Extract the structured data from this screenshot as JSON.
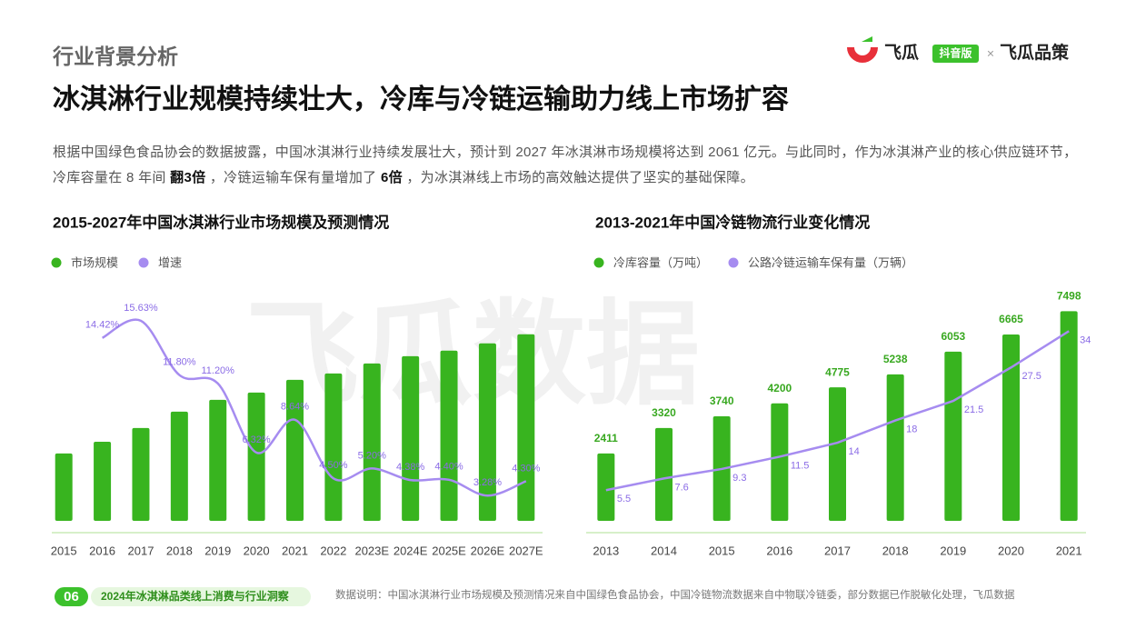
{
  "header": {
    "section": "行业背景分析",
    "title": "冰淇淋行业规模持续壮大，冷库与冷链运输助力线上市场扩容",
    "intro": [
      "根据中国绿色食品协会的数据披露，中国冰淇淋行业持续发展壮大，预计到 2027 年冰淇淋市场规模将达到 2061 亿元。与此同时，作为冰淇淋产业的核心供应链环节，冷库容量在 8 年间 ",
      "翻3倍",
      " ，冷链运输车保有量增加了 ",
      "6倍",
      " ，为冰淇淋线上市场的高效触达提供了坚实的基础保障。"
    ]
  },
  "logo": {
    "brand": "飞瓜",
    "badge": "抖音版",
    "sep": "×",
    "partner": "飞瓜品策"
  },
  "watermark": "飞瓜数据",
  "footer": {
    "page": "06",
    "report": "2024年冰淇淋品类线上消费与行业洞察",
    "source": "数据说明：中国冰淇淋行业市场规模及预测情况来自中国绿色食品协会，中国冷链物流数据来自中物联冷链委，部分数据已作脱敏化处理，飞瓜数据"
  },
  "chart_data": [
    {
      "type": "bar",
      "title": "2015-2027年中国冰淇淋行业市场规模及预测情况",
      "categories": [
        "2015",
        "2016",
        "2017",
        "2018",
        "2019",
        "2020",
        "2021",
        "2022",
        "2023E",
        "2024E",
        "2025E",
        "2026E",
        "2027E"
      ],
      "ylim": [
        0,
        2440
      ],
      "y2lim": [
        1.5,
        17.1
      ],
      "series": [
        {
          "name": "市场规模",
          "color": "#38b41f",
          "data_labels": false,
          "values": [
            744,
            874,
            1025,
            1206,
            1337,
            1417,
            1558,
            1628,
            1739,
            1819,
            1880,
            1960,
            2061
          ]
        },
        {
          "name": "增速",
          "color": "#a68cf0",
          "type": "line",
          "axis": "y2",
          "smooth": true,
          "data_labels": true,
          "values": [
            null,
            14.42,
            15.63,
            11.8,
            11.2,
            6.32,
            8.64,
            4.5,
            5.2,
            4.38,
            4.4,
            3.28,
            4.3
          ],
          "value_labels": [
            null,
            "14.42%",
            "15.63%",
            "11.80%",
            "11.20%",
            "6.32%",
            "8.64%",
            "4.50%",
            "5.20%",
            "4.38%",
            "4.40%",
            "3.28%",
            "4.30%"
          ]
        }
      ]
    },
    {
      "type": "bar",
      "title": "2013-2021年中国冷链物流行业变化情况",
      "categories": [
        "2013",
        "2014",
        "2015",
        "2016",
        "2017",
        "2018",
        "2019",
        "2020",
        "2021"
      ],
      "ylim": [
        0,
        7900
      ],
      "y2lim": [
        0,
        39.6
      ],
      "series": [
        {
          "name": "冷库容量（万吨）",
          "color": "#38b41f",
          "data_labels": true,
          "values": [
            2411,
            3320,
            3740,
            4200,
            4775,
            5238,
            6053,
            6665,
            7498
          ]
        },
        {
          "name": "公路冷链运输车保有量（万辆）",
          "color": "#a68cf0",
          "type": "line",
          "axis": "y2",
          "smooth": false,
          "data_labels": true,
          "values": [
            5.5,
            7.6,
            9.3,
            11.5,
            14,
            18,
            21.5,
            27.5,
            34
          ]
        }
      ]
    }
  ]
}
